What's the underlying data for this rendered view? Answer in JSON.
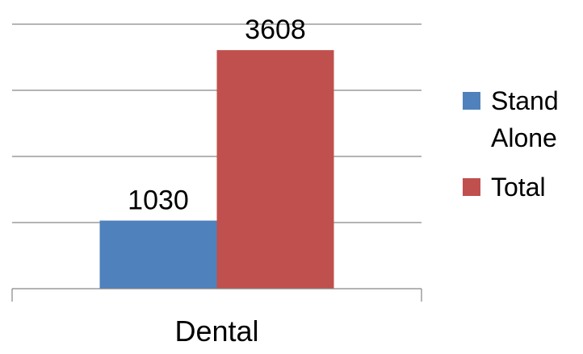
{
  "chart_data": {
    "type": "bar",
    "categories": [
      "Dental"
    ],
    "series": [
      {
        "name": "Stand Alone",
        "values": [
          1030
        ],
        "color": "#4F81BD"
      },
      {
        "name": "Total",
        "values": [
          3608
        ],
        "color": "#C0504D"
      }
    ],
    "legend_lines": [
      [
        "Stand",
        "Alone"
      ],
      [
        "Total"
      ]
    ],
    "ylim": [
      0,
      4000
    ],
    "y_major_unit": 1000,
    "grid": true,
    "legend_position": "right",
    "title": "",
    "xlabel": "",
    "ylabel": ""
  }
}
